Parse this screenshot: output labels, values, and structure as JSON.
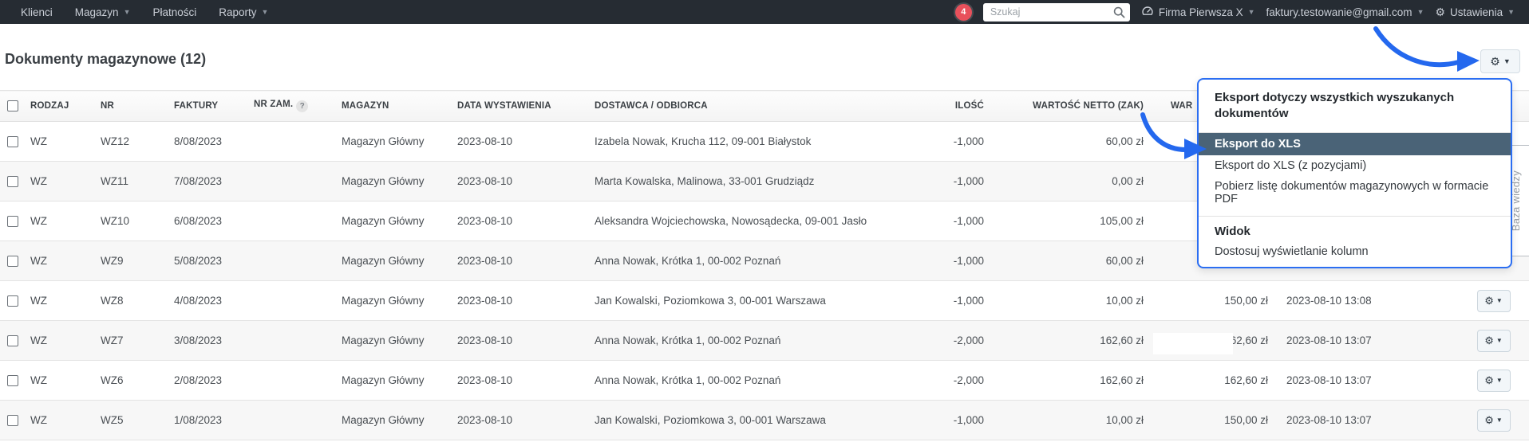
{
  "colors": {
    "navbar_bg": "#262c33",
    "accent_blue": "#2b6ef2",
    "menu_highlight": "#4a6377",
    "badge_red": "#e8505b"
  },
  "navbar": {
    "items": [
      {
        "label": "Klienci",
        "caret": false
      },
      {
        "label": "Magazyn",
        "caret": true
      },
      {
        "label": "Płatności",
        "caret": false
      },
      {
        "label": "Raporty",
        "caret": true
      }
    ],
    "notification_count": "4",
    "search_placeholder": "Szukaj",
    "company": "Firma Pierwsza X",
    "account": "faktury.testowanie@gmail.com",
    "settings_label": "Ustawienia"
  },
  "page": {
    "title": "Dokumenty magazynowe (12)"
  },
  "table": {
    "columns": [
      {
        "label": "RODZAJ"
      },
      {
        "label": "NR"
      },
      {
        "label": "FAKTURY"
      },
      {
        "label": "NR ZAM."
      },
      {
        "label": "MAGAZYN"
      },
      {
        "label": "DATA WYSTAWIENIA"
      },
      {
        "label": "DOSTAWCA / ODBIORCA"
      },
      {
        "label": "ILOŚĆ"
      },
      {
        "label": "WARTOŚĆ NETTO (ZAK)"
      },
      {
        "label": "WAR"
      }
    ],
    "rows": [
      {
        "rodzaj": "WZ",
        "nr": "WZ12",
        "faktury": "8/08/2023",
        "nr_zam": "",
        "magazyn": "Magazyn Główny",
        "data_wystawienia": "2023-08-10",
        "dostawca": "Izabela Nowak, Krucha 112, 09-001 Białystok",
        "ilosc": "-1,000",
        "wartosc_netto_zak": "60,00 zł",
        "wartosc_2": "",
        "utworzono": "",
        "gear": false
      },
      {
        "rodzaj": "WZ",
        "nr": "WZ11",
        "faktury": "7/08/2023",
        "nr_zam": "",
        "magazyn": "Magazyn Główny",
        "data_wystawienia": "2023-08-10",
        "dostawca": "Marta Kowalska, Malinowa, 33-001 Grudziądz",
        "ilosc": "-1,000",
        "wartosc_netto_zak": "0,00 zł",
        "wartosc_2": "",
        "utworzono": "",
        "gear": false
      },
      {
        "rodzaj": "WZ",
        "nr": "WZ10",
        "faktury": "6/08/2023",
        "nr_zam": "",
        "magazyn": "Magazyn Główny",
        "data_wystawienia": "2023-08-10",
        "dostawca": "Aleksandra Wojciechowska, Nowosądecka, 09-001 Jasło",
        "ilosc": "-1,000",
        "wartosc_netto_zak": "105,00 zł",
        "wartosc_2": "",
        "utworzono": "",
        "gear": false
      },
      {
        "rodzaj": "WZ",
        "nr": "WZ9",
        "faktury": "5/08/2023",
        "nr_zam": "",
        "magazyn": "Magazyn Główny",
        "data_wystawienia": "2023-08-10",
        "dostawca": "Anna Nowak, Krótka 1, 00-002 Poznań",
        "ilosc": "-1,000",
        "wartosc_netto_zak": "60,00 zł",
        "wartosc_2": "",
        "utworzono": "",
        "gear": false
      },
      {
        "rodzaj": "WZ",
        "nr": "WZ8",
        "faktury": "4/08/2023",
        "nr_zam": "",
        "magazyn": "Magazyn Główny",
        "data_wystawienia": "2023-08-10",
        "dostawca": "Jan Kowalski, Poziomkowa 3, 00-001 Warszawa",
        "ilosc": "-1,000",
        "wartosc_netto_zak": "10,00 zł",
        "wartosc_2": "150,00 zł",
        "utworzono": "2023-08-10 13:08",
        "gear": true
      },
      {
        "rodzaj": "WZ",
        "nr": "WZ7",
        "faktury": "3/08/2023",
        "nr_zam": "",
        "magazyn": "Magazyn Główny",
        "data_wystawienia": "2023-08-10",
        "dostawca": "Anna Nowak, Krótka 1, 00-002 Poznań",
        "ilosc": "-2,000",
        "wartosc_netto_zak": "162,60 zł",
        "wartosc_2": "62,60 zł",
        "utworzono": "2023-08-10 13:07",
        "gear": true
      },
      {
        "rodzaj": "WZ",
        "nr": "WZ6",
        "faktury": "2/08/2023",
        "nr_zam": "",
        "magazyn": "Magazyn Główny",
        "data_wystawienia": "2023-08-10",
        "dostawca": "Anna Nowak, Krótka 1, 00-002 Poznań",
        "ilosc": "-2,000",
        "wartosc_netto_zak": "162,60 zł",
        "wartosc_2": "162,60 zł",
        "utworzono": "2023-08-10 13:07",
        "gear": true
      },
      {
        "rodzaj": "WZ",
        "nr": "WZ5",
        "faktury": "1/08/2023",
        "nr_zam": "",
        "magazyn": "Magazyn Główny",
        "data_wystawienia": "2023-08-10",
        "dostawca": "Jan Kowalski, Poziomkowa 3, 00-001 Warszawa",
        "ilosc": "-1,000",
        "wartosc_netto_zak": "10,00 zł",
        "wartosc_2": "150,00 zł",
        "utworzono": "2023-08-10 13:07",
        "gear": true
      }
    ]
  },
  "dropdown": {
    "header": "Eksport dotyczy wszystkich wyszukanych dokumentów",
    "items": [
      "Eksport do XLS",
      "Eksport do XLS (z pozycjami)",
      "Pobierz listę dokumentów magazynowych w formacie PDF"
    ],
    "section_title": "Widok",
    "section_item": "Dostosuj wyświetlanie kolumn"
  },
  "side_tab": {
    "label": "Baza wiedzy"
  },
  "help_badge": "?"
}
